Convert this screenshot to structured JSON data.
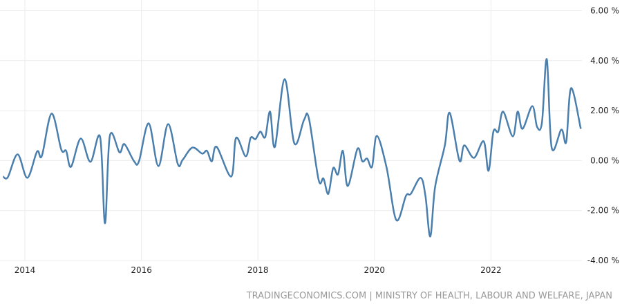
{
  "chart_data": {
    "type": "line",
    "title": "",
    "xlabel": "",
    "ylabel": "",
    "ylim": [
      -4,
      6
    ],
    "y_ticks": [
      "6.00 %",
      "4.00 %",
      "2.00 %",
      "0.00 %",
      "-2.00 %",
      "-4.00 %"
    ],
    "y_tick_values": [
      6,
      4,
      2,
      0,
      -2,
      -4
    ],
    "x_ticks": [
      "2014",
      "2016",
      "2018",
      "2020",
      "2022"
    ],
    "grid": true,
    "line_color": "#4a7fad",
    "series": [
      {
        "points": [
          [
            "2013-08",
            -0.64
          ],
          [
            "2013-09",
            -0.66
          ],
          [
            "2013-11",
            0.25
          ],
          [
            "2014-01",
            -0.69
          ],
          [
            "2014-03",
            0.36
          ],
          [
            "2014-04",
            0.19
          ],
          [
            "2014-06",
            1.88
          ],
          [
            "2014-08",
            0.44
          ],
          [
            "2014-09",
            0.39
          ],
          [
            "2014-10",
            -0.25
          ],
          [
            "2014-12",
            0.88
          ],
          [
            "2015-02",
            -0.05
          ],
          [
            "2015-04",
            0.94
          ],
          [
            "2015-05",
            -2.51
          ],
          [
            "2015-06",
            0.99
          ],
          [
            "2015-08",
            0.33
          ],
          [
            "2015-09",
            0.66
          ],
          [
            "2015-11",
            -0.03
          ],
          [
            "2015-12",
            -0.03
          ],
          [
            "2016-02",
            1.49
          ],
          [
            "2016-04",
            -0.22
          ],
          [
            "2016-06",
            1.46
          ],
          [
            "2016-08",
            -0.14
          ],
          [
            "2016-09",
            0.03
          ],
          [
            "2016-11",
            0.52
          ],
          [
            "2017-01",
            0.28
          ],
          [
            "2017-02",
            0.39
          ],
          [
            "2017-03",
            -0.03
          ],
          [
            "2017-04",
            0.55
          ],
          [
            "2017-07",
            -0.64
          ],
          [
            "2017-08",
            0.91
          ],
          [
            "2017-10",
            0.17
          ],
          [
            "2017-11",
            0.91
          ],
          [
            "2017-12",
            0.86
          ],
          [
            "2018-01",
            1.16
          ],
          [
            "2018-02",
            0.94
          ],
          [
            "2018-03",
            1.96
          ],
          [
            "2018-04",
            0.55
          ],
          [
            "2018-06",
            3.26
          ],
          [
            "2018-08",
            0.69
          ],
          [
            "2018-10",
            1.63
          ],
          [
            "2018-11",
            1.69
          ],
          [
            "2019-01",
            -0.77
          ],
          [
            "2019-02",
            -0.72
          ],
          [
            "2019-03",
            -1.33
          ],
          [
            "2019-04",
            -0.3
          ],
          [
            "2019-05",
            -0.55
          ],
          [
            "2019-06",
            0.39
          ],
          [
            "2019-07",
            -1.02
          ],
          [
            "2019-09",
            0.47
          ],
          [
            "2019-10",
            -0.03
          ],
          [
            "2019-11",
            0.08
          ],
          [
            "2019-12",
            -0.25
          ],
          [
            "2020-01",
            0.99
          ],
          [
            "2020-03",
            -0.28
          ],
          [
            "2020-05",
            -2.38
          ],
          [
            "2020-07",
            -1.41
          ],
          [
            "2020-08",
            -1.33
          ],
          [
            "2020-10",
            -0.69
          ],
          [
            "2020-11",
            -1.41
          ],
          [
            "2020-12",
            -3.04
          ],
          [
            "2021-01",
            -1.05
          ],
          [
            "2021-03",
            0.61
          ],
          [
            "2021-04",
            1.91
          ],
          [
            "2021-06",
            0.0
          ],
          [
            "2021-07",
            0.61
          ],
          [
            "2021-09",
            0.11
          ],
          [
            "2021-11",
            0.77
          ],
          [
            "2021-12",
            -0.41
          ],
          [
            "2022-01",
            1.16
          ],
          [
            "2022-02",
            1.16
          ],
          [
            "2022-03",
            1.96
          ],
          [
            "2022-05",
            0.97
          ],
          [
            "2022-06",
            1.96
          ],
          [
            "2022-07",
            1.27
          ],
          [
            "2022-09",
            2.18
          ],
          [
            "2022-10",
            1.35
          ],
          [
            "2022-11",
            1.52
          ],
          [
            "2022-12",
            4.06
          ],
          [
            "2023-01",
            0.52
          ],
          [
            "2023-03",
            1.24
          ],
          [
            "2023-04",
            0.75
          ],
          [
            "2023-05",
            2.9
          ],
          [
            "2023-07",
            1.27
          ]
        ]
      }
    ]
  },
  "source": "TRADINGECONOMICS.COM | MINISTRY OF HEALTH, LABOUR AND WELFARE, JAPAN"
}
